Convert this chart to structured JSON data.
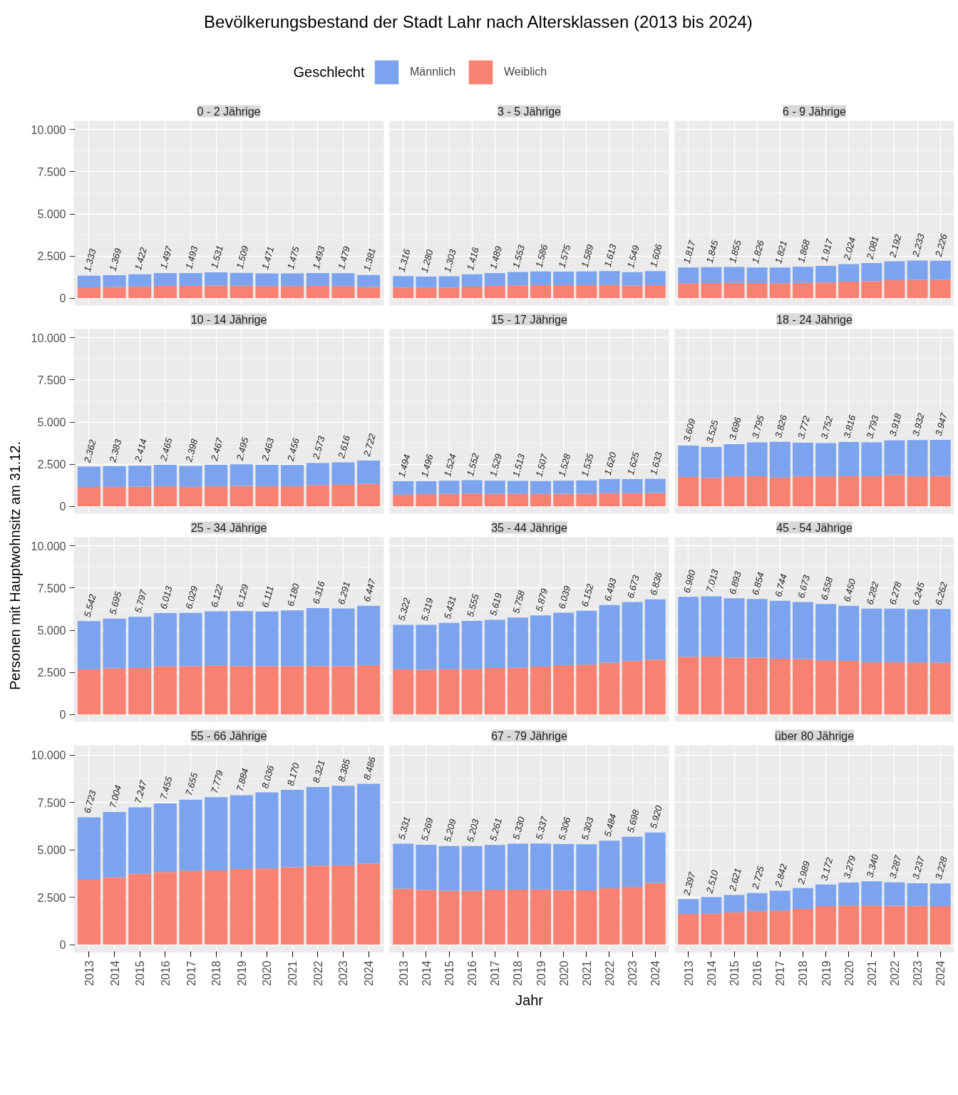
{
  "chart_data": [
    {
      "type": "bar",
      "title": "Bevölkerungsbestand der Stadt Lahr nach Altersklassen (2013 bis 2024)",
      "legend_title": "Geschlecht",
      "legend": "top",
      "subtitle": "0 - 2 Jährige",
      "categories": [
        "2013",
        "2014",
        "2015",
        "2016",
        "2017",
        "2018",
        "2019",
        "2020",
        "2021",
        "2022",
        "2023",
        "2024"
      ],
      "stacked": true,
      "grid": true,
      "tick_labels": "y",
      "ylim": [
        -430,
        10520
      ],
      "yticks": [
        0,
        {
          "value": 2500,
          "label": "2.500"
        },
        {
          "value": 5000,
          "label": "5.000"
        },
        {
          "value": 7500,
          "label": "7.500"
        },
        {
          "value": 10000,
          "label": "10.000"
        }
      ],
      "series": [
        {
          "name": "Weiblich",
          "color": "#f98171",
          "values": [
            650,
            670,
            700,
            730,
            730,
            750,
            740,
            720,
            720,
            730,
            720,
            670
          ]
        },
        {
          "name": "Männlich",
          "color": "#7ba3ee",
          "values": [
            683,
            699,
            722,
            767,
            763,
            781,
            769,
            751,
            755,
            763,
            759,
            711
          ]
        }
      ],
      "totals": [
        "1.333",
        "1.369",
        "1.422",
        "1.497",
        "1.493",
        "1.531",
        "1.509",
        "1.471",
        "1.475",
        "1.493",
        "1.479",
        "1.381"
      ]
    },
    {
      "type": "bar",
      "subtitle": "3 - 5 Jährige",
      "categories": [
        "2013",
        "2014",
        "2015",
        "2016",
        "2017",
        "2018",
        "2019",
        "2020",
        "2021",
        "2022",
        "2023",
        "2024"
      ],
      "stacked": true,
      "grid": true,
      "tick_labels": false,
      "ylim": [
        -430,
        10520
      ],
      "yticks": [
        0,
        2500,
        5000,
        7500,
        10000
      ],
      "series": [
        {
          "color": "#f98171",
          "values": [
            640,
            620,
            630,
            690,
            730,
            760,
            770,
            770,
            780,
            790,
            750,
            780
          ]
        },
        {
          "color": "#7ba3ee",
          "values": [
            676,
            660,
            673,
            726,
            759,
            793,
            816,
            805,
            809,
            823,
            799,
            826
          ]
        }
      ],
      "totals": [
        "1.316",
        "1.280",
        "1.303",
        "1.416",
        "1.489",
        "1.553",
        "1.586",
        "1.575",
        "1.589",
        "1.613",
        "1.549",
        "1.606"
      ]
    },
    {
      "type": "bar",
      "subtitle": "6 - 9 Jährige",
      "categories": [
        "2013",
        "2014",
        "2015",
        "2016",
        "2017",
        "2018",
        "2019",
        "2020",
        "2021",
        "2022",
        "2023",
        "2024"
      ],
      "stacked": true,
      "grid": true,
      "tick_labels": false,
      "ylim": [
        -430,
        10520
      ],
      "yticks": [
        0,
        2500,
        5000,
        7500,
        10000
      ],
      "series": [
        {
          "color": "#f98171",
          "values": [
            890,
            900,
            910,
            900,
            890,
            910,
            930,
            990,
            1010,
            1070,
            1090,
            1090
          ]
        },
        {
          "color": "#7ba3ee",
          "values": [
            927,
            945,
            945,
            926,
            931,
            958,
            987,
            1034,
            1071,
            1122,
            1143,
            1136
          ]
        }
      ],
      "totals": [
        "1.817",
        "1.845",
        "1.855",
        "1.826",
        "1.821",
        "1.868",
        "1.917",
        "2.024",
        "2.081",
        "2.192",
        "2.233",
        "2.226"
      ]
    },
    {
      "type": "bar",
      "subtitle": "10 - 14 Jährige",
      "categories": [
        "2013",
        "2014",
        "2015",
        "2016",
        "2017",
        "2018",
        "2019",
        "2020",
        "2021",
        "2022",
        "2023",
        "2024"
      ],
      "stacked": true,
      "grid": true,
      "tick_labels": "y",
      "ylim": [
        -430,
        10520
      ],
      "yticks": [
        0,
        {
          "value": 2500,
          "label": "2.500"
        },
        {
          "value": 5000,
          "label": "5.000"
        },
        {
          "value": 7500,
          "label": "7.500"
        },
        {
          "value": 10000,
          "label": "10.000"
        }
      ],
      "series": [
        {
          "color": "#f98171",
          "values": [
            1160,
            1170,
            1180,
            1200,
            1170,
            1200,
            1220,
            1200,
            1200,
            1260,
            1280,
            1330
          ]
        },
        {
          "color": "#7ba3ee",
          "values": [
            1202,
            1213,
            1234,
            1265,
            1228,
            1267,
            1275,
            1263,
            1256,
            1313,
            1336,
            1392
          ]
        }
      ],
      "totals": [
        "2.362",
        "2.383",
        "2.414",
        "2.465",
        "2.398",
        "2.467",
        "2.495",
        "2.463",
        "2.456",
        "2.573",
        "2.616",
        "2.722"
      ]
    },
    {
      "type": "bar",
      "subtitle": "15 - 17 Jährige",
      "categories": [
        "2013",
        "2014",
        "2015",
        "2016",
        "2017",
        "2018",
        "2019",
        "2020",
        "2021",
        "2022",
        "2023",
        "2024"
      ],
      "stacked": true,
      "grid": true,
      "tick_labels": false,
      "ylim": [
        -430,
        10520
      ],
      "yticks": [
        0,
        2500,
        5000,
        7500,
        10000
      ],
      "series": [
        {
          "color": "#f98171",
          "values": [
            700,
            730,
            740,
            760,
            740,
            740,
            740,
            750,
            750,
            790,
            790,
            800
          ]
        },
        {
          "color": "#7ba3ee",
          "values": [
            794,
            766,
            784,
            792,
            789,
            773,
            767,
            778,
            785,
            830,
            835,
            833
          ]
        }
      ],
      "totals": [
        "1.494",
        "1.496",
        "1.524",
        "1.552",
        "1.529",
        "1.513",
        "1.507",
        "1.528",
        "1.535",
        "1.620",
        "1.625",
        "1.633"
      ]
    },
    {
      "type": "bar",
      "subtitle": "18 - 24 Jährige",
      "categories": [
        "2013",
        "2014",
        "2015",
        "2016",
        "2017",
        "2018",
        "2019",
        "2020",
        "2021",
        "2022",
        "2023",
        "2024"
      ],
      "stacked": true,
      "grid": true,
      "tick_labels": false,
      "ylim": [
        -430,
        10520
      ],
      "yticks": [
        0,
        2500,
        5000,
        7500,
        10000
      ],
      "series": [
        {
          "color": "#f98171",
          "values": [
            1750,
            1690,
            1780,
            1790,
            1700,
            1780,
            1780,
            1790,
            1790,
            1850,
            1780,
            1800
          ]
        },
        {
          "color": "#7ba3ee",
          "values": [
            1859,
            1835,
            1916,
            2005,
            2126,
            1992,
            1972,
            2026,
            2003,
            2068,
            2152,
            2147
          ]
        }
      ],
      "totals": [
        "3.609",
        "3.525",
        "3.696",
        "3.795",
        "3.826",
        "3.772",
        "3.752",
        "3.816",
        "3.793",
        "3.918",
        "3.932",
        "3.947"
      ]
    },
    {
      "type": "bar",
      "ylabel": "Personen mit Hauptwohnsitz am 31.12.",
      "subtitle": "25 - 34 Jährige",
      "categories": [
        "2013",
        "2014",
        "2015",
        "2016",
        "2017",
        "2018",
        "2019",
        "2020",
        "2021",
        "2022",
        "2023",
        "2024"
      ],
      "stacked": true,
      "grid": true,
      "tick_labels": "y",
      "ylim": [
        -430,
        10520
      ],
      "yticks": [
        0,
        {
          "value": 2500,
          "label": "2.500"
        },
        {
          "value": 5000,
          "label": "5.000"
        },
        {
          "value": 7500,
          "label": "7.500"
        },
        {
          "value": 10000,
          "label": "10.000"
        }
      ],
      "series": [
        {
          "color": "#f98171",
          "values": [
            2680,
            2740,
            2760,
            2860,
            2870,
            2920,
            2880,
            2870,
            2870,
            2880,
            2870,
            2930
          ]
        },
        {
          "color": "#7ba3ee",
          "values": [
            2862,
            2955,
            3037,
            3153,
            3159,
            3202,
            3249,
            3241,
            3310,
            3436,
            3421,
            3517
          ]
        }
      ],
      "totals": [
        "5.542",
        "5.695",
        "5.797",
        "6.013",
        "6.029",
        "6.122",
        "6.129",
        "6.111",
        "6.180",
        "6.316",
        "6.291",
        "6.447"
      ]
    },
    {
      "type": "bar",
      "subtitle": "35 - 44 Jährige",
      "categories": [
        "2013",
        "2014",
        "2015",
        "2016",
        "2017",
        "2018",
        "2019",
        "2020",
        "2021",
        "2022",
        "2023",
        "2024"
      ],
      "stacked": true,
      "grid": true,
      "tick_labels": false,
      "ylim": [
        -430,
        10520
      ],
      "yticks": [
        0,
        2500,
        5000,
        7500,
        10000
      ],
      "series": [
        {
          "color": "#f98171",
          "values": [
            2680,
            2670,
            2690,
            2700,
            2760,
            2770,
            2850,
            2930,
            2960,
            3080,
            3170,
            3260
          ]
        },
        {
          "color": "#7ba3ee",
          "values": [
            2642,
            2649,
            2741,
            2855,
            2859,
            2988,
            3029,
            3109,
            3192,
            3413,
            3503,
            3576
          ]
        }
      ],
      "totals": [
        "5.322",
        "5.319",
        "5.431",
        "5.555",
        "5.619",
        "5.758",
        "5.879",
        "6.039",
        "6.152",
        "6.493",
        "6.673",
        "6.836"
      ]
    },
    {
      "type": "bar",
      "subtitle": "45 - 54 Jährige",
      "categories": [
        "2013",
        "2014",
        "2015",
        "2016",
        "2017",
        "2018",
        "2019",
        "2020",
        "2021",
        "2022",
        "2023",
        "2024"
      ],
      "stacked": true,
      "grid": true,
      "tick_labels": false,
      "ylim": [
        -430,
        10520
      ],
      "yticks": [
        0,
        2500,
        5000,
        7500,
        10000
      ],
      "series": [
        {
          "color": "#f98171",
          "values": [
            3430,
            3440,
            3370,
            3370,
            3310,
            3290,
            3220,
            3190,
            3100,
            3100,
            3090,
            3080
          ]
        },
        {
          "color": "#7ba3ee",
          "values": [
            3550,
            3573,
            3523,
            3484,
            3434,
            3383,
            3338,
            3260,
            3182,
            3178,
            3155,
            3182
          ]
        }
      ],
      "totals": [
        "6.980",
        "7.013",
        "6.893",
        "6.854",
        "6.744",
        "6.673",
        "6.558",
        "6.450",
        "6.282",
        "6.278",
        "6.245",
        "6.262"
      ]
    },
    {
      "type": "bar",
      "subtitle": "55 - 66 Jährige",
      "categories": [
        "2013",
        "2014",
        "2015",
        "2016",
        "2017",
        "2018",
        "2019",
        "2020",
        "2021",
        "2022",
        "2023",
        "2024"
      ],
      "stacked": true,
      "grid": true,
      "ylim": [
        -430,
        10520
      ],
      "yticks": [
        0,
        {
          "value": 2500,
          "label": "2.500"
        },
        {
          "value": 5000,
          "label": "5.000"
        },
        {
          "value": 7500,
          "label": "7.500"
        },
        {
          "value": 10000,
          "label": "10.000"
        }
      ],
      "series": [
        {
          "color": "#f98171",
          "values": [
            3430,
            3560,
            3740,
            3830,
            3910,
            3920,
            3990,
            4020,
            4090,
            4170,
            4180,
            4270
          ]
        },
        {
          "color": "#7ba3ee",
          "values": [
            3293,
            3444,
            3507,
            3625,
            3745,
            3859,
            3894,
            4016,
            4080,
            4151,
            4205,
            4216
          ]
        }
      ],
      "totals": [
        "6.723",
        "7.004",
        "7.247",
        "7.455",
        "7.655",
        "7.779",
        "7.884",
        "8.036",
        "8.170",
        "8.321",
        "8.385",
        "8.486"
      ]
    },
    {
      "type": "bar",
      "xlabel": "Jahr",
      "subtitle": "67 - 79 Jährige",
      "categories": [
        "2013",
        "2014",
        "2015",
        "2016",
        "2017",
        "2018",
        "2019",
        "2020",
        "2021",
        "2022",
        "2023",
        "2024"
      ],
      "stacked": true,
      "grid": true,
      "tick_labels": "x",
      "ylim": [
        -430,
        10520
      ],
      "yticks": [
        0,
        2500,
        5000,
        7500,
        10000
      ],
      "series": [
        {
          "color": "#f98171",
          "values": [
            2960,
            2890,
            2840,
            2840,
            2900,
            2900,
            2910,
            2880,
            2860,
            2980,
            3060,
            3260
          ]
        },
        {
          "color": "#7ba3ee",
          "values": [
            2371,
            2379,
            2369,
            2363,
            2361,
            2430,
            2427,
            2426,
            2443,
            2504,
            2638,
            2660
          ]
        }
      ],
      "totals": [
        "5.331",
        "5.269",
        "5.209",
        "5.203",
        "5.261",
        "5.330",
        "5.337",
        "5.306",
        "5.303",
        "5.484",
        "5.698",
        "5.920"
      ]
    },
    {
      "type": "bar",
      "subtitle": "über 80 Jährige",
      "categories": [
        "2013",
        "2014",
        "2015",
        "2016",
        "2017",
        "2018",
        "2019",
        "2020",
        "2021",
        "2022",
        "2023",
        "2024"
      ],
      "stacked": true,
      "grid": true,
      "tick_labels": "x",
      "ylim": [
        -430,
        10520
      ],
      "yticks": [
        0,
        2500,
        5000,
        7500,
        10000
      ],
      "series": [
        {
          "color": "#f98171",
          "values": [
            1620,
            1630,
            1710,
            1780,
            1800,
            1880,
            2030,
            2060,
            2060,
            2050,
            2040,
            2030
          ]
        },
        {
          "color": "#7ba3ee",
          "values": [
            777,
            880,
            911,
            945,
            1042,
            1109,
            1142,
            1219,
            1280,
            1237,
            1197,
            1198
          ]
        }
      ],
      "totals": [
        "2.397",
        "2.510",
        "2.621",
        "2.725",
        "2.842",
        "2.989",
        "3.172",
        "3.279",
        "3.340",
        "3.287",
        "3.237",
        "3.228"
      ]
    }
  ]
}
